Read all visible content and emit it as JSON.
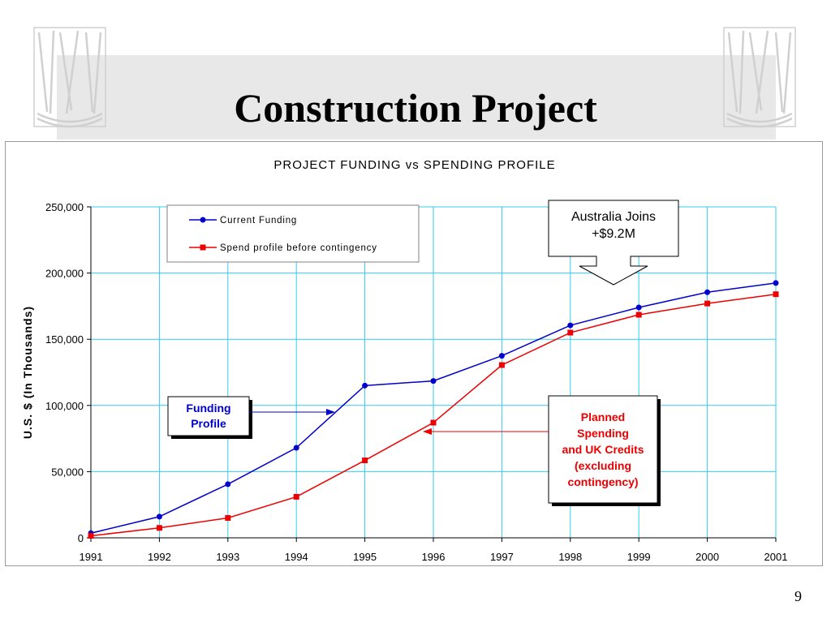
{
  "slide": {
    "title": "Construction Project",
    "page_number": "9"
  },
  "colors": {
    "funding": "#0000cc",
    "spending": "#ee0000",
    "grid": "#33ccee"
  },
  "chart_data": {
    "type": "line",
    "title": "PROJECT FUNDING vs SPENDING PROFILE",
    "xlabel": "",
    "ylabel": "U.S. $ (In Thousands)",
    "x": [
      1991,
      1992,
      1993,
      1994,
      1995,
      1996,
      1997,
      1998,
      1999,
      2000,
      2001
    ],
    "ylim": [
      0,
      250000
    ],
    "yticks": [
      0,
      50000,
      100000,
      150000,
      200000,
      250000
    ],
    "ytick_labels": [
      "0",
      "50,000",
      "100,000",
      "150,000",
      "200,000",
      "250,000"
    ],
    "grid": true,
    "legend_placement": "top-left",
    "series": [
      {
        "name": "Current Funding",
        "color": "#0000cc",
        "marker": "circle",
        "values": [
          3500,
          16000,
          40500,
          68000,
          115000,
          118500,
          137500,
          160500,
          174000,
          185500,
          192500
        ]
      },
      {
        "name": "Spend profile before contingency",
        "color": "#ee0000",
        "marker": "square",
        "values": [
          1500,
          7500,
          15000,
          31000,
          58500,
          87000,
          130500,
          155000,
          168500,
          177000,
          184000
        ]
      }
    ],
    "annotations": {
      "australia": {
        "line1": "Australia Joins",
        "line2": "+$9.2M"
      },
      "funding_profile": {
        "line1": "Funding",
        "line2": "Profile"
      },
      "planned": {
        "line1": "Planned",
        "line2": "Spending",
        "line3": "and UK Credits",
        "line4": "(excluding",
        "line5": "contingency)"
      }
    }
  }
}
